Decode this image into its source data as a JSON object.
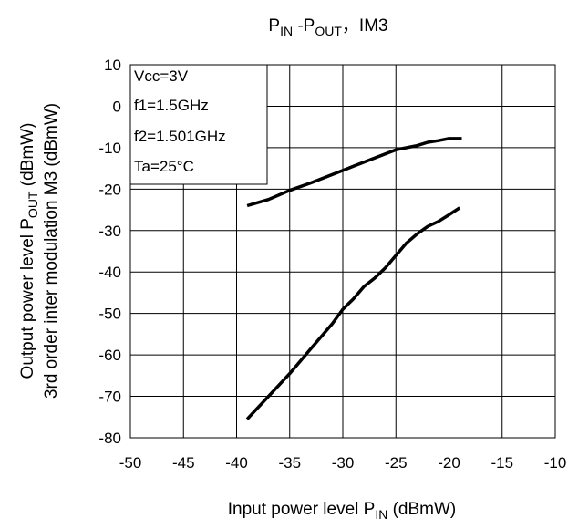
{
  "chart_data": {
    "type": "line",
    "title": {
      "main": "P",
      "sub1": "IN",
      "mid": " -P",
      "sub2": "OUT",
      "tail": "，IM3"
    },
    "xlabel": {
      "main": "Input power level P",
      "sub": "IN",
      "tail": " (dBmW)"
    },
    "ylabel_line1": {
      "main": "Output power level P",
      "sub": "OUT",
      "tail": " (dBmW)"
    },
    "ylabel_line2": "3rd order inter modulation M3 (dBmW)",
    "xlim": [
      -50,
      -10
    ],
    "ylim": [
      -80,
      10
    ],
    "x_ticks": [
      "-50",
      "-45",
      "-40",
      "-35",
      "-30",
      "-25",
      "-20",
      "-15",
      "-10"
    ],
    "y_ticks": [
      "10",
      "0",
      "-10",
      "-20",
      "-30",
      "-40",
      "-50",
      "-60",
      "-70",
      "-80"
    ],
    "grid": true,
    "legend_box": {
      "placement": "top-left",
      "lines": [
        "Vcc=3V",
        "f1=1.5GHz",
        "f2=1.501GHz",
        "Ta=25°C"
      ]
    },
    "series": [
      {
        "points": [
          [
            -39,
            -24
          ],
          [
            -37,
            -22.5
          ],
          [
            -35,
            -20.3
          ],
          [
            -33,
            -18.5
          ],
          [
            -31,
            -16.5
          ],
          [
            -29,
            -14.5
          ],
          [
            -27,
            -12.5
          ],
          [
            -25,
            -10.5
          ],
          [
            -23,
            -9.5
          ],
          [
            -22,
            -8.7
          ],
          [
            -21,
            -8.3
          ],
          [
            -20,
            -7.8
          ],
          [
            -19,
            -7.8
          ],
          [
            -18.8,
            -7.8
          ]
        ]
      },
      {
        "points": [
          [
            -39,
            -75.5
          ],
          [
            -37,
            -70
          ],
          [
            -35,
            -64.5
          ],
          [
            -33,
            -58.5
          ],
          [
            -31,
            -52.5
          ],
          [
            -30,
            -49
          ],
          [
            -29,
            -46.5
          ],
          [
            -28,
            -43.5
          ],
          [
            -27,
            -41.5
          ],
          [
            -26,
            -39
          ],
          [
            -25,
            -36
          ],
          [
            -24,
            -33
          ],
          [
            -23,
            -30.8
          ],
          [
            -22,
            -29
          ],
          [
            -21,
            -27.8
          ],
          [
            -20,
            -26.2
          ],
          [
            -19,
            -24.5
          ]
        ]
      }
    ]
  }
}
